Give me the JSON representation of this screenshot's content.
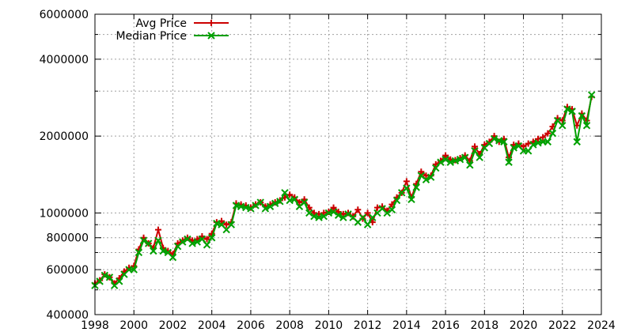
{
  "chart_data": {
    "type": "line",
    "title": "",
    "xlabel": "",
    "ylabel": "",
    "xlim": [
      1998,
      2024
    ],
    "ylim": [
      400000,
      6000000
    ],
    "y_scale": "log",
    "grid": true,
    "legend_position": "top-left",
    "x_ticks": [
      {
        "value": 1998,
        "label": "1998"
      },
      {
        "value": 2000,
        "label": "2000"
      },
      {
        "value": 2002,
        "label": "2002"
      },
      {
        "value": 2004,
        "label": "2004"
      },
      {
        "value": 2006,
        "label": "2006"
      },
      {
        "value": 2008,
        "label": "2008"
      },
      {
        "value": 2010,
        "label": "2010"
      },
      {
        "value": 2012,
        "label": "2012"
      },
      {
        "value": 2014,
        "label": "2014"
      },
      {
        "value": 2016,
        "label": "2016"
      },
      {
        "value": 2018,
        "label": "2018"
      },
      {
        "value": 2020,
        "label": "2020"
      },
      {
        "value": 2022,
        "label": "2022"
      },
      {
        "value": 2024,
        "label": "2024"
      }
    ],
    "y_ticks": [
      {
        "value": 400000,
        "label": "400000"
      },
      {
        "value": 600000,
        "label": "600000"
      },
      {
        "value": 800000,
        "label": "800000"
      },
      {
        "value": 1000000,
        "label": "1000000"
      },
      {
        "value": 2000000,
        "label": "2000000"
      },
      {
        "value": 4000000,
        "label": "4000000"
      },
      {
        "value": 6000000,
        "label": "6000000"
      }
    ],
    "y_minor_gridlines": [
      500000,
      700000,
      900000,
      3000000,
      5000000
    ],
    "series": [
      {
        "name": "Avg Price",
        "color": "#cc0000",
        "marker": "plus",
        "x": [
          1998.0,
          1998.25,
          1998.5,
          1998.75,
          1999.0,
          1999.25,
          1999.5,
          1999.75,
          2000.0,
          2000.25,
          2000.5,
          2000.75,
          2001.0,
          2001.25,
          2001.5,
          2001.75,
          2002.0,
          2002.25,
          2002.5,
          2002.75,
          2003.0,
          2003.25,
          2003.5,
          2003.75,
          2004.0,
          2004.25,
          2004.5,
          2004.75,
          2005.0,
          2005.25,
          2005.5,
          2005.75,
          2006.0,
          2006.25,
          2006.5,
          2006.75,
          2007.0,
          2007.25,
          2007.5,
          2007.75,
          2008.0,
          2008.25,
          2008.5,
          2008.75,
          2009.0,
          2009.25,
          2009.5,
          2009.75,
          2010.0,
          2010.25,
          2010.5,
          2010.75,
          2011.0,
          2011.25,
          2011.5,
          2011.75,
          2012.0,
          2012.25,
          2012.5,
          2012.75,
          2013.0,
          2013.25,
          2013.5,
          2013.75,
          2014.0,
          2014.25,
          2014.5,
          2014.75,
          2015.0,
          2015.25,
          2015.5,
          2015.75,
          2016.0,
          2016.25,
          2016.5,
          2016.75,
          2017.0,
          2017.25,
          2017.5,
          2017.75,
          2018.0,
          2018.25,
          2018.5,
          2018.75,
          2019.0,
          2019.25,
          2019.5,
          2019.75,
          2020.0,
          2020.25,
          2020.5,
          2020.75,
          2021.0,
          2021.25,
          2021.5,
          2021.75,
          2022.0,
          2022.25,
          2022.5,
          2022.75,
          2023.0,
          2023.25,
          2023.5
        ],
        "values": [
          530000,
          545000,
          575000,
          560000,
          530000,
          555000,
          590000,
          610000,
          620000,
          720000,
          800000,
          760000,
          730000,
          860000,
          730000,
          710000,
          690000,
          760000,
          780000,
          800000,
          780000,
          790000,
          810000,
          790000,
          830000,
          920000,
          930000,
          900000,
          920000,
          1090000,
          1080000,
          1070000,
          1050000,
          1080000,
          1100000,
          1060000,
          1080000,
          1100000,
          1120000,
          1150000,
          1180000,
          1150000,
          1100000,
          1130000,
          1050000,
          1000000,
          990000,
          1000000,
          1010000,
          1050000,
          1010000,
          990000,
          1000000,
          970000,
          1030000,
          950000,
          1000000,
          920000,
          1050000,
          1060000,
          1020000,
          1080000,
          1150000,
          1200000,
          1330000,
          1150000,
          1300000,
          1450000,
          1400000,
          1400000,
          1550000,
          1600000,
          1680000,
          1620000,
          1610000,
          1640000,
          1680000,
          1600000,
          1820000,
          1700000,
          1850000,
          1900000,
          2000000,
          1900000,
          1950000,
          1650000,
          1850000,
          1870000,
          1820000,
          1870000,
          1900000,
          1950000,
          1980000,
          2050000,
          2180000,
          2350000,
          2300000,
          2600000,
          2550000,
          2200000,
          2450000,
          2300000,
          2850000
        ]
      },
      {
        "name": "Median Price",
        "color": "#00a000",
        "marker": "cross",
        "x": [
          1998.0,
          1998.25,
          1998.5,
          1998.75,
          1999.0,
          1999.25,
          1999.5,
          1999.75,
          2000.0,
          2000.25,
          2000.5,
          2000.75,
          2001.0,
          2001.25,
          2001.5,
          2001.75,
          2002.0,
          2002.25,
          2002.5,
          2002.75,
          2003.0,
          2003.25,
          2003.5,
          2003.75,
          2004.0,
          2004.25,
          2004.5,
          2004.75,
          2005.0,
          2005.25,
          2005.5,
          2005.75,
          2006.0,
          2006.25,
          2006.5,
          2006.75,
          2007.0,
          2007.25,
          2007.5,
          2007.75,
          2008.0,
          2008.25,
          2008.5,
          2008.75,
          2009.0,
          2009.25,
          2009.5,
          2009.75,
          2010.0,
          2010.25,
          2010.5,
          2010.75,
          2011.0,
          2011.25,
          2011.5,
          2011.75,
          2012.0,
          2012.25,
          2012.5,
          2012.75,
          2013.0,
          2013.25,
          2013.5,
          2013.75,
          2014.0,
          2014.25,
          2014.5,
          2014.75,
          2015.0,
          2015.25,
          2015.5,
          2015.75,
          2016.0,
          2016.25,
          2016.5,
          2016.75,
          2017.0,
          2017.25,
          2017.5,
          2017.75,
          2018.0,
          2018.25,
          2018.5,
          2018.75,
          2019.0,
          2019.25,
          2019.5,
          2019.75,
          2020.0,
          2020.25,
          2020.5,
          2020.75,
          2021.0,
          2021.25,
          2021.5,
          2021.75,
          2022.0,
          2022.25,
          2022.5,
          2022.75,
          2023.0,
          2023.25,
          2023.5
        ],
        "values": [
          520000,
          540000,
          570000,
          560000,
          520000,
          540000,
          575000,
          600000,
          600000,
          700000,
          780000,
          760000,
          710000,
          780000,
          710000,
          700000,
          670000,
          740000,
          770000,
          790000,
          760000,
          770000,
          790000,
          750000,
          800000,
          910000,
          900000,
          860000,
          900000,
          1070000,
          1060000,
          1050000,
          1040000,
          1070000,
          1100000,
          1040000,
          1060000,
          1090000,
          1110000,
          1200000,
          1120000,
          1130000,
          1060000,
          1100000,
          1000000,
          970000,
          960000,
          970000,
          1000000,
          1010000,
          980000,
          960000,
          990000,
          960000,
          920000,
          960000,
          900000,
          960000,
          1000000,
          1040000,
          1000000,
          1030000,
          1120000,
          1200000,
          1250000,
          1130000,
          1260000,
          1400000,
          1350000,
          1380000,
          1500000,
          1580000,
          1620000,
          1580000,
          1600000,
          1620000,
          1650000,
          1540000,
          1750000,
          1650000,
          1800000,
          1870000,
          1950000,
          1920000,
          1900000,
          1580000,
          1800000,
          1830000,
          1750000,
          1750000,
          1850000,
          1880000,
          1900000,
          1900000,
          2050000,
          2300000,
          2200000,
          2550000,
          2500000,
          1900000,
          2400000,
          2200000,
          2900000
        ]
      }
    ]
  }
}
